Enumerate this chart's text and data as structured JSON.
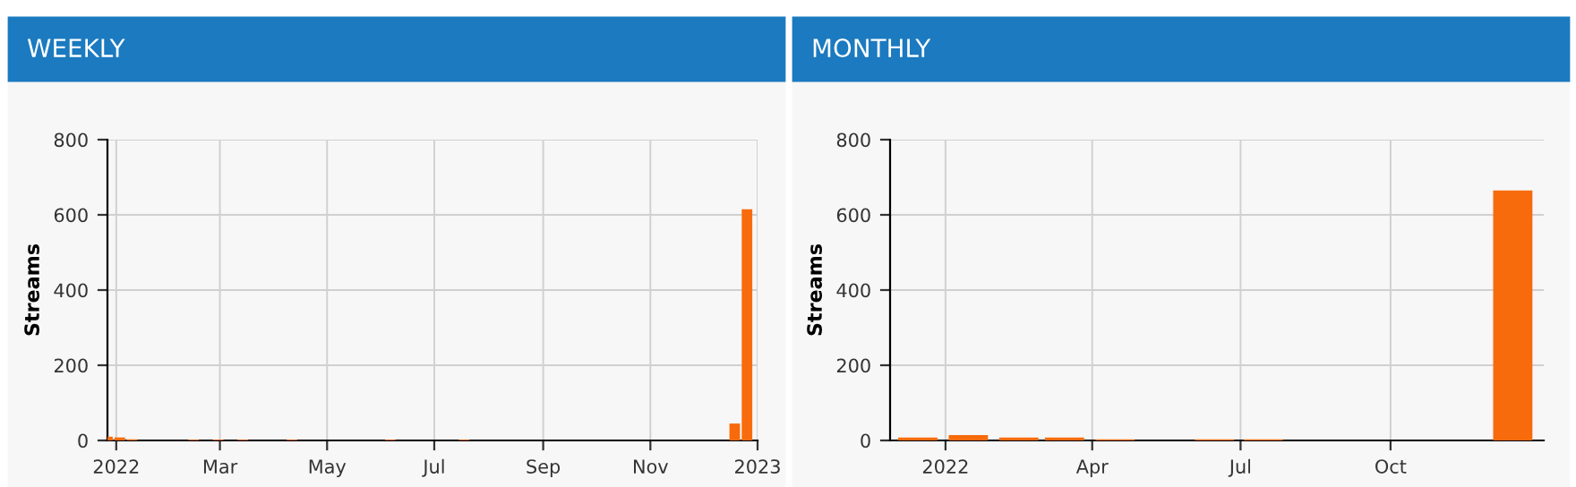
{
  "chart_data": [
    {
      "type": "bar",
      "title": "WEEKLY",
      "ylabel": "Streams",
      "x": [
        "2021-12-27",
        "2022-01-03",
        "2022-01-10",
        "2022-02-14",
        "2022-02-28",
        "2022-03-14",
        "2022-04-11",
        "2022-06-06",
        "2022-07-18",
        "2022-12-19",
        "2022-12-26"
      ],
      "series": [
        {
          "color": "#f76b0c",
          "values": [
            10,
            8,
            3,
            2,
            2,
            2,
            2,
            2,
            2,
            45,
            615
          ]
        }
      ],
      "xlim": [
        "2021-12-27",
        "2023-01-01"
      ],
      "xticks": [
        {
          "value": "2022-01-01",
          "label": "2022"
        },
        {
          "value": "2022-03-01",
          "label": "Mar"
        },
        {
          "value": "2022-05-01",
          "label": "May"
        },
        {
          "value": "2022-07-01",
          "label": "Jul"
        },
        {
          "value": "2022-09-01",
          "label": "Sep"
        },
        {
          "value": "2022-11-01",
          "label": "Nov"
        },
        {
          "value": "2023-01-01",
          "label": "2023"
        }
      ],
      "ylim": [
        0,
        800
      ],
      "yticks": [
        0,
        200,
        400,
        600,
        800
      ],
      "grid": true,
      "legend": false
    },
    {
      "type": "bar",
      "title": "MONTHLY",
      "ylabel": "Streams",
      "x": [
        "2021-12-15",
        "2022-01-15",
        "2022-02-15",
        "2022-03-15",
        "2022-04-15",
        "2022-06-15",
        "2022-07-15",
        "2022-12-15"
      ],
      "series": [
        {
          "color": "#f76b0c",
          "values": [
            8,
            14,
            8,
            8,
            3,
            3,
            3,
            665
          ]
        }
      ],
      "xlim": [
        "2021-11-28",
        "2023-01-03"
      ],
      "xticks": [
        {
          "value": "2022-01-01",
          "label": "2022"
        },
        {
          "value": "2022-04-01",
          "label": "Apr"
        },
        {
          "value": "2022-07-01",
          "label": "Jul"
        },
        {
          "value": "2022-10-01",
          "label": "Oct"
        }
      ],
      "ylim": [
        0,
        800
      ],
      "yticks": [
        0,
        200,
        400,
        600,
        800
      ],
      "grid": true,
      "legend": false
    }
  ]
}
